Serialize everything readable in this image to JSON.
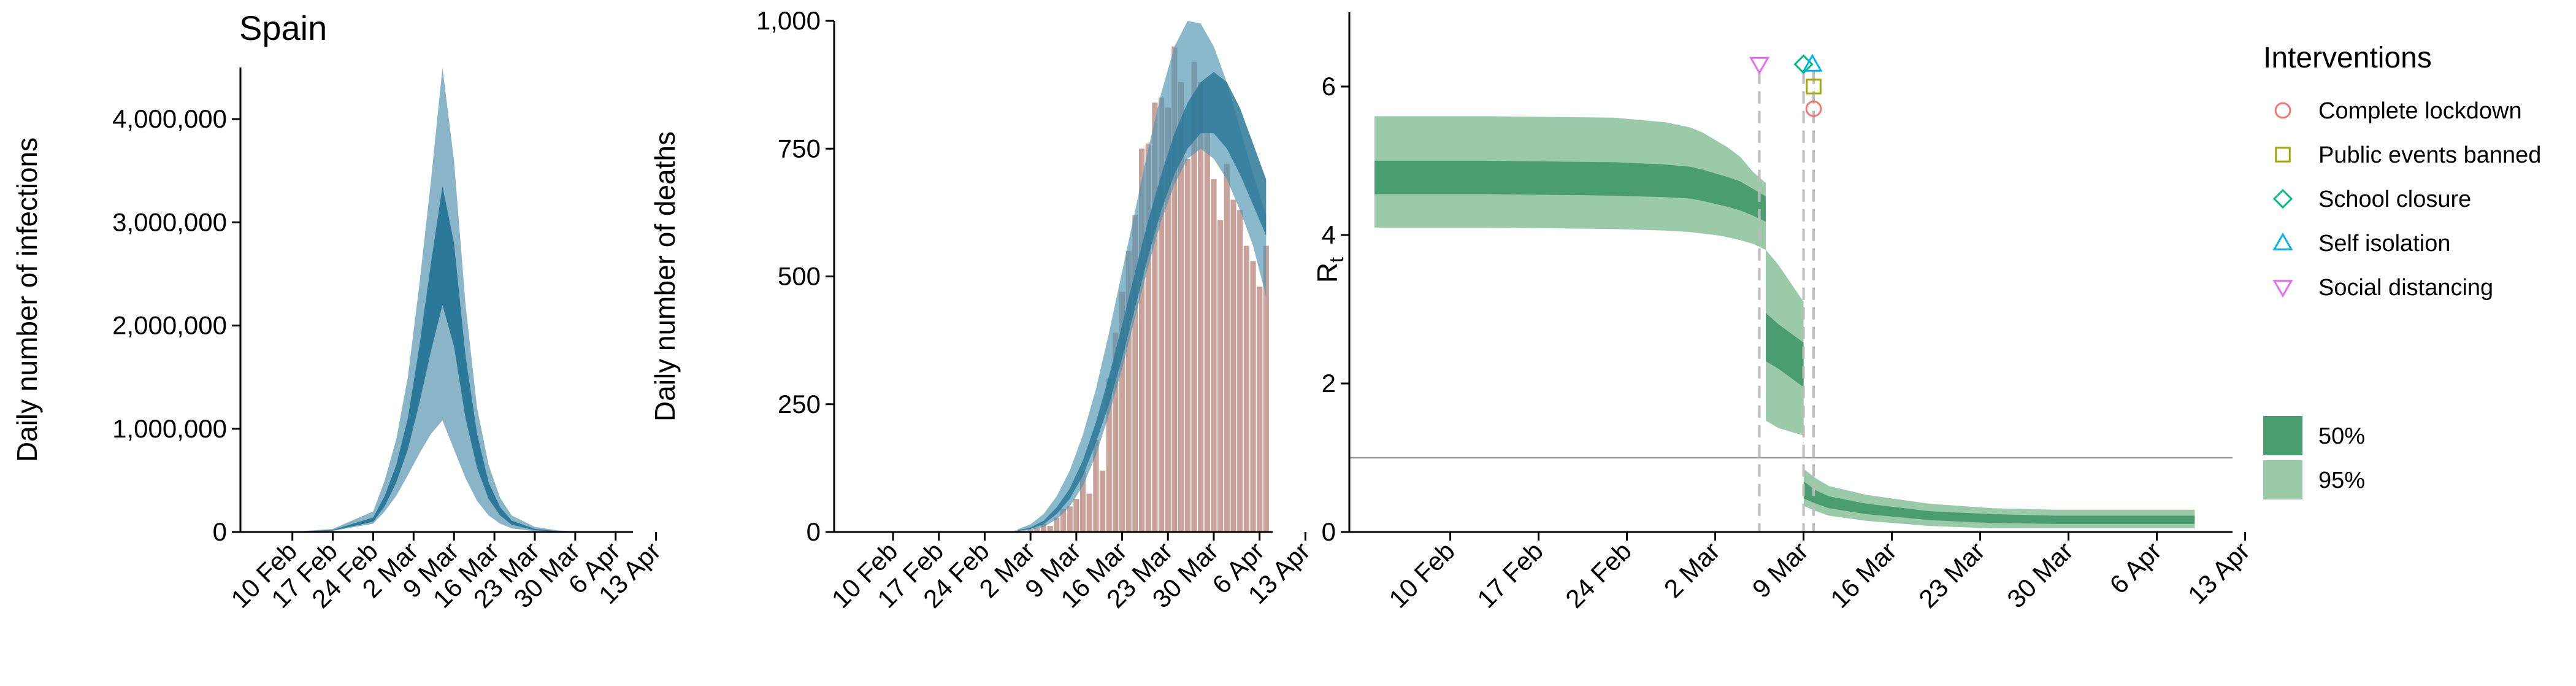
{
  "colors": {
    "blue_light": "#8ab5c8",
    "blue_mid": "#4d94b0",
    "blue_dark": "#2b7898",
    "bar": "#c9a39a",
    "green_light": "#9bcaa9",
    "green_dark": "#4a9d6e",
    "marker_lockdown": "#f8766d",
    "marker_events": "#a3a500",
    "marker_school": "#00bf7d",
    "marker_isolation": "#00b0f6",
    "marker_distancing": "#e76bf3"
  },
  "chart_data": [
    {
      "type": "area",
      "title": "Spain",
      "xlabel": "",
      "ylabel": "Daily number of infections",
      "x_ticks": [
        "10 Feb",
        "17 Feb",
        "24 Feb",
        "2 Mar",
        "9 Mar",
        "16 Mar",
        "23 Mar",
        "30 Mar",
        "6 Apr",
        "13 Apr"
      ],
      "y_ticks": [
        "0",
        "1,000,000",
        "2,000,000",
        "3,000,000",
        "4,000,000"
      ],
      "ylim": [
        0,
        4500000
      ],
      "x": [
        0,
        7,
        14,
        21,
        23,
        25,
        27,
        29,
        31,
        33,
        35,
        37,
        39,
        41,
        43,
        45,
        49,
        53,
        57,
        61,
        64
      ],
      "series": [
        {
          "band": "95%",
          "upper": [
            0,
            2000,
            30000,
            200000,
            500000,
            900000,
            1500000,
            2400000,
            3400000,
            4500000,
            3600000,
            2200000,
            1200000,
            650000,
            330000,
            160000,
            50000,
            15000,
            4000,
            1000,
            0
          ],
          "lower": [
            0,
            1000,
            10000,
            80000,
            200000,
            350000,
            550000,
            760000,
            950000,
            1080000,
            800000,
            520000,
            300000,
            160000,
            80000,
            35000,
            8000,
            1500,
            300,
            0,
            0
          ]
        },
        {
          "band": "50%",
          "upper": [
            0,
            1500,
            20000,
            140000,
            350000,
            650000,
            1100000,
            1800000,
            2600000,
            3350000,
            2800000,
            1700000,
            950000,
            480000,
            240000,
            110000,
            30000,
            8000,
            2000,
            500,
            0
          ],
          "lower": [
            0,
            1200,
            14000,
            100000,
            250000,
            480000,
            800000,
            1250000,
            1750000,
            2200000,
            1800000,
            1100000,
            620000,
            320000,
            160000,
            70000,
            18000,
            4000,
            1000,
            200,
            0
          ]
        }
      ]
    },
    {
      "type": "bar",
      "title": "",
      "xlabel": "",
      "ylabel": "Daily number of deaths",
      "x_ticks": [
        "10 Feb",
        "17 Feb",
        "24 Feb",
        "2 Mar",
        "9 Mar",
        "16 Mar",
        "23 Mar",
        "30 Mar",
        "6 Apr",
        "13 Apr"
      ],
      "y_ticks": [
        "0",
        "250",
        "500",
        "750",
        "1,000"
      ],
      "ylim": [
        0,
        1000
      ],
      "bars_start_day": 26,
      "values": [
        3,
        2,
        5,
        8,
        16,
        12,
        28,
        45,
        50,
        65,
        120,
        75,
        180,
        120,
        300,
        390,
        470,
        550,
        620,
        750,
        760,
        840,
        850,
        830,
        950,
        880,
        730,
        920,
        880,
        780,
        690,
        610,
        720,
        650,
        630,
        560,
        530,
        480,
        560
      ],
      "curve_x": [
        26,
        28,
        30,
        32,
        34,
        36,
        38,
        40,
        42,
        44,
        46,
        48,
        50,
        52,
        54,
        56,
        58,
        60,
        62,
        64
      ],
      "series": [
        {
          "band": "95%",
          "upper": [
            5,
            15,
            35,
            70,
            120,
            190,
            280,
            390,
            510,
            630,
            750,
            860,
            950,
            1000,
            995,
            950,
            880,
            790,
            700,
            620
          ],
          "lower": [
            1,
            4,
            10,
            25,
            50,
            90,
            150,
            230,
            320,
            420,
            520,
            610,
            680,
            730,
            750,
            730,
            690,
            630,
            560,
            460
          ]
        },
        {
          "band": "50%",
          "upper": [
            3,
            9,
            22,
            48,
            85,
            140,
            215,
            305,
            405,
            510,
            610,
            700,
            780,
            840,
            880,
            900,
            880,
            830,
            760,
            690
          ],
          "lower": [
            2,
            6,
            15,
            35,
            65,
            110,
            175,
            250,
            340,
            440,
            540,
            630,
            700,
            750,
            780,
            780,
            750,
            700,
            640,
            580
          ]
        }
      ]
    },
    {
      "type": "line",
      "title": "",
      "xlabel": "",
      "ylabel": "Rt",
      "x_ticks": [
        "10 Feb",
        "17 Feb",
        "24 Feb",
        "2 Mar",
        "9 Mar",
        "16 Mar",
        "23 Mar",
        "30 Mar",
        "6 Apr",
        "13 Apr"
      ],
      "y_ticks": [
        "0",
        "2",
        "4",
        "6"
      ],
      "ylim": [
        0,
        7
      ],
      "reference_line": 1,
      "series": [
        {
          "band": "95%",
          "x": [
            1,
            10,
            20,
            24,
            26,
            27,
            28,
            29,
            30,
            31,
            32,
            32.01,
            33,
            35,
            35.01,
            36,
            37,
            40,
            45,
            50,
            55,
            60,
            66
          ],
          "upper": [
            5.6,
            5.6,
            5.58,
            5.52,
            5.45,
            5.38,
            5.28,
            5.18,
            5.05,
            4.85,
            4.7,
            3.8,
            3.6,
            3.1,
            0.85,
            0.72,
            0.62,
            0.5,
            0.38,
            0.32,
            0.3,
            0.3,
            0.3
          ],
          "lower": [
            4.1,
            4.1,
            4.08,
            4.06,
            4.04,
            4.02,
            4.0,
            3.97,
            3.93,
            3.88,
            3.8,
            1.5,
            1.4,
            1.3,
            0.35,
            0.28,
            0.22,
            0.15,
            0.08,
            0.05,
            0.05,
            0.05,
            0.05
          ]
        },
        {
          "band": "50%",
          "x": [
            1,
            10,
            20,
            24,
            26,
            27,
            28,
            29,
            30,
            31,
            32,
            32.01,
            33,
            35,
            35.01,
            36,
            37,
            40,
            45,
            50,
            55,
            60,
            66
          ],
          "upper": [
            5.0,
            5.0,
            4.98,
            4.95,
            4.92,
            4.88,
            4.83,
            4.78,
            4.72,
            4.62,
            4.52,
            2.95,
            2.8,
            2.55,
            0.68,
            0.56,
            0.48,
            0.38,
            0.28,
            0.24,
            0.22,
            0.22,
            0.22
          ],
          "lower": [
            4.55,
            4.55,
            4.53,
            4.51,
            4.49,
            4.46,
            4.42,
            4.38,
            4.33,
            4.26,
            4.18,
            2.3,
            2.2,
            1.95,
            0.45,
            0.38,
            0.32,
            0.24,
            0.16,
            0.12,
            0.11,
            0.11,
            0.11
          ]
        }
      ],
      "interventions": [
        {
          "name": "Social distancing",
          "day": 31.5,
          "y": 6.3,
          "marker": "triangle-down"
        },
        {
          "name": "School closure",
          "day": 35.0,
          "y": 6.3,
          "marker": "diamond"
        },
        {
          "name": "Self isolation",
          "day": 35.7,
          "y": 6.3,
          "marker": "triangle-up"
        },
        {
          "name": "Public events banned",
          "day": 35.8,
          "y": 6.0,
          "marker": "square"
        },
        {
          "name": "Complete lockdown",
          "day": 35.8,
          "y": 5.7,
          "marker": "circle"
        }
      ],
      "legend": {
        "title": "Interventions",
        "placement": "right",
        "items": [
          {
            "label": "Complete lockdown",
            "marker": "circle"
          },
          {
            "label": "Public events banned",
            "marker": "square"
          },
          {
            "label": "School closure",
            "marker": "diamond"
          },
          {
            "label": "Self isolation",
            "marker": "triangle-up"
          },
          {
            "label": "Social distancing",
            "marker": "triangle-down"
          }
        ],
        "band_items": [
          {
            "label": "50%"
          },
          {
            "label": "95%"
          }
        ]
      }
    }
  ]
}
